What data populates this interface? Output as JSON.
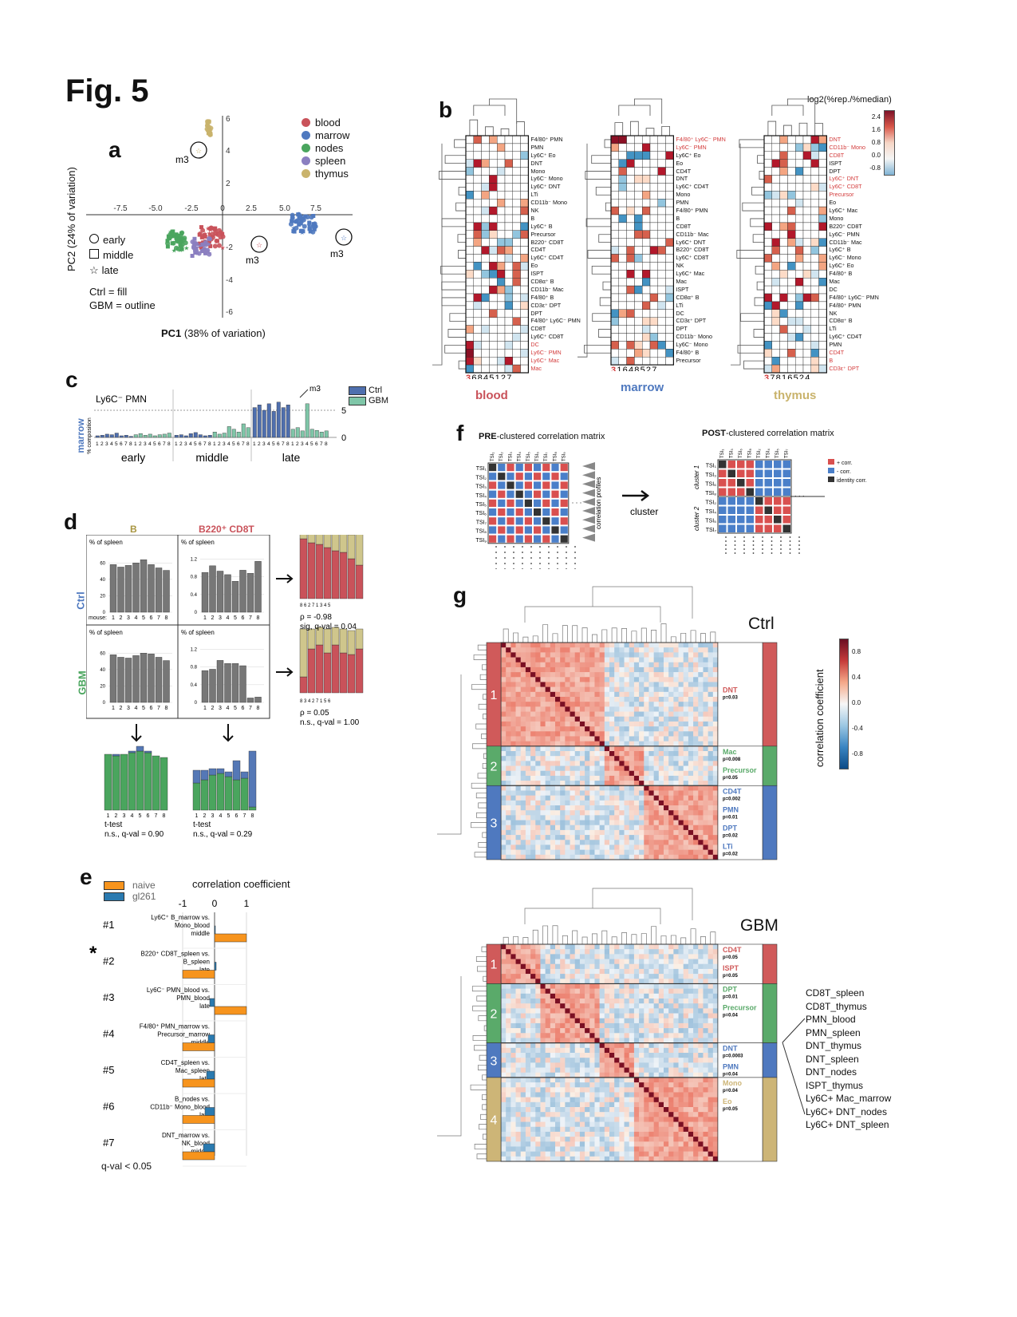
{
  "fig_title": "Fig. 5",
  "panels": {
    "a": {
      "label": "a",
      "xlabel_bold": "PC1",
      "xlabel_rest": " (38% of variation)",
      "ylabel": "PC2 (24% of variation)",
      "xticks": [
        "-7.5",
        "-5.0",
        "-2.5",
        "0",
        "2.5",
        "5.0",
        "7.5"
      ],
      "yticks": [
        "6",
        "4",
        "2",
        "-2",
        "-4",
        "-6"
      ],
      "tissues": [
        {
          "name": "blood",
          "color": "#c9525a"
        },
        {
          "name": "marrow",
          "color": "#4f79bf"
        },
        {
          "name": "nodes",
          "color": "#4aa55e"
        },
        {
          "name": "spleen",
          "color": "#8b7fc0"
        },
        {
          "name": "thymus",
          "color": "#c9b36c"
        }
      ],
      "timepoints": [
        "early",
        "middle",
        "late"
      ],
      "fill_note": "Ctrl = fill",
      "outline_note": "GBM = outline",
      "m3_label": "m3"
    },
    "b": {
      "label": "b",
      "scale_title": "log2(%rep./%median)",
      "scale_ticks": [
        "2.4",
        "1.6",
        "0.8",
        "0.0",
        "-0.8"
      ],
      "blocks": [
        {
          "tissue": "blood",
          "color": "#c9525a",
          "order": "3 6 8 4 5 1 2 7",
          "rows": [
            "F4/80⁺ PMN",
            "PMN",
            "Ly6C⁺ Eo",
            "DNT",
            "Mono",
            "Ly6C⁻ Mono",
            "Ly6C⁺ DNT",
            "LTi",
            "CD11b⁻ Mono",
            "NK",
            "B",
            "Ly6C⁺ B",
            "Precursor",
            "B220⁺ CD8T",
            "CD4T",
            "Ly6C⁺ CD4T",
            "Eo",
            "ISPT",
            "CD8α⁺ B",
            "CD11b⁻ Mac",
            "F4/80⁺ B",
            "CD3ε⁺ DPT",
            "DPT",
            "F4/80⁺ Ly6C⁻ PMN",
            "CD8T",
            "Ly6C⁺ CD8T",
            "DC",
            "Ly6C⁻ PMN",
            "Ly6C⁺ Mac",
            "Mac"
          ],
          "red_rows": [
            26,
            27,
            28,
            29
          ]
        },
        {
          "tissue": "marrow",
          "color": "#4f79bf",
          "order": "3 1 6 4 8 5 2 7",
          "rows": [
            "F4/80⁺ Ly6C⁻ PMN",
            "Ly6C⁻ PMN",
            "Ly6C⁺ Eo",
            "Eo",
            "CD4T",
            "DNT",
            "Ly6C⁺ CD4T",
            "Mono",
            "PMN",
            "F4/80⁺ PMN",
            "B",
            "CD8T",
            "CD11b⁻ Mac",
            "Ly6C⁺ DNT",
            "B220⁺ CD8T",
            "Ly6C⁺ CD8T",
            "NK",
            "Ly6C⁺ Mac",
            "Mac",
            "ISPT",
            "CD8α⁺ B",
            "LTi",
            "DC",
            "CD3ε⁺ DPT",
            "DPT",
            "CD11b⁻ Mono",
            "Ly6C⁻ Mono",
            "F4/80⁺ B",
            "Precursor"
          ],
          "red_rows": [
            0,
            1
          ]
        },
        {
          "tissue": "thymus",
          "color": "#c9b36c",
          "order": "3 7 8 1 6 5 2 4",
          "rows": [
            "DNT",
            "CD11b⁻ Mono",
            "CD8T",
            "ISPT",
            "DPT",
            "Ly6C⁺ DNT",
            "Ly6C⁺ CD8T",
            "Precursor",
            "Eo",
            "Ly6C⁺ Mac",
            "Mono",
            "B220⁺ CD8T",
            "Ly6C⁻ PMN",
            "CD11b⁻ Mac",
            "Ly6C⁺ B",
            "Ly6C⁻ Mono",
            "Ly6C⁺ Eo",
            "F4/80⁺ B",
            "Mac",
            "DC",
            "F4/80⁺ Ly6C⁻ PMN",
            "F4/80⁺ PMN",
            "NK",
            "CD8α⁺ B",
            "LTi",
            "Ly6C⁺ CD4T",
            "PMN",
            "CD4T",
            "B",
            "CD3ε⁺ DPT"
          ],
          "red_rows": [
            0,
            1,
            2,
            5,
            6,
            7,
            27,
            28,
            29
          ]
        }
      ]
    },
    "c": {
      "label": "c",
      "tissue_label": "marrow",
      "ylabel": "% composition",
      "title": "Ly6C⁻ PMN",
      "legend": [
        {
          "name": "Ctrl",
          "color": "#4f6fae"
        },
        {
          "name": "GBM",
          "color": "#7fc6a8"
        }
      ],
      "yticks": [
        "5",
        "0"
      ],
      "groups": [
        "early",
        "middle",
        "late"
      ],
      "m3_label": "m3",
      "mouse_labels": [
        "1",
        "2",
        "3",
        "4",
        "5",
        "6",
        "7",
        "8"
      ]
    },
    "d": {
      "label": "d",
      "col_b": "B",
      "col_cd8": "B220⁺ CD8T",
      "row_ctrl": "Ctrl",
      "row_gbm": "GBM",
      "pct_label": "% of spleen",
      "mouse_label": "mouse:",
      "ctrl_stat1": "ρ = -0.98",
      "ctrl_stat2": "sig, q-val = 0.04",
      "ctrl_order": "8 6 2 7 1 3 4 5",
      "gbm_stat1": "ρ = 0.05",
      "gbm_stat2": "n.s., q-val = 1.00",
      "gbm_order": "8 3 4 2 7 1 5 6",
      "ttest_label": "t-test",
      "ttest_b": "n.s., q-val = 0.90",
      "ttest_cd8": "n.s., q-val = 0.29",
      "mice": [
        "1",
        "2",
        "3",
        "4",
        "5",
        "6",
        "7",
        "8"
      ]
    },
    "e": {
      "label": "e",
      "legend": [
        {
          "name": "naive",
          "color": "#f7941d"
        },
        {
          "name": "gl261",
          "color": "#2a7ab0"
        }
      ],
      "axis_title": "correlation coefficient",
      "ticks": [
        "-1",
        "0",
        "1"
      ],
      "rows": [
        {
          "id": "#1",
          "l1": "Ly6C⁺ B_marrow vs.",
          "l2": "Mono_blood",
          "l3": "middle",
          "naive": 1.0,
          "gl261": 0.0
        },
        {
          "id": "#2",
          "l1": "B220⁺ CD8T_spleen vs.",
          "l2": "B_spleen",
          "l3": "late",
          "naive": -1.0,
          "gl261": 0.05
        },
        {
          "id": "#3",
          "l1": "Ly6C⁻ PMN_blood vs.",
          "l2": "PMN_blood",
          "l3": "late",
          "naive": 1.0,
          "gl261": -0.15
        },
        {
          "id": "#4",
          "l1": "F4/80⁺ PMN_marrow vs.",
          "l2": "Precursor_marrow",
          "l3": "middle",
          "naive": -1.0,
          "gl261": -0.2
        },
        {
          "id": "#5",
          "l1": "CD4T_spleen vs.",
          "l2": "Mac_spleen",
          "l3": "late",
          "naive": -1.0,
          "gl261": -0.25
        },
        {
          "id": "#6",
          "l1": "B_nodes vs.",
          "l2": "CD11b⁻ Mono_blood",
          "l3": "late",
          "naive": -1.0,
          "gl261": -0.3
        },
        {
          "id": "#7",
          "l1": "DNT_marrow vs.",
          "l2": "NK_blood",
          "l3": "middle",
          "naive": -1.0,
          "gl261": -0.35
        }
      ],
      "star": "*",
      "footnote": "q-val < 0.05"
    },
    "f": {
      "label": "f",
      "pre_bold": "PRE",
      "pre_rest": "-clustered correlation matrix",
      "post_bold": "POST",
      "post_rest": "-clustered correlation matrix",
      "arrow_label": "cluster",
      "profiles_label": "correlation profiles",
      "cluster1": "cluster 1",
      "cluster2": "cluster 2",
      "legend": [
        {
          "name": "+ corr.",
          "color": "#d9504f"
        },
        {
          "name": "- corr.",
          "color": "#4a7fc9"
        },
        {
          "name": "identity corr.",
          "color": "#333333"
        }
      ]
    },
    "g": {
      "label": "g",
      "ctrl_title": "Ctrl",
      "gbm_title": "GBM",
      "colorbar_title": "correlation coefficient",
      "colorbar_ticks": [
        "0.8",
        "0.4",
        "0.0",
        "-0.4",
        "-0.8"
      ],
      "ctrl_clusters": [
        {
          "n": "1",
          "color": "#d05a5a",
          "labels": [
            {
              "t": "DNT",
              "p": "p=0.03"
            }
          ]
        },
        {
          "n": "2",
          "color": "#5aaa6a",
          "labels": [
            {
              "t": "Mac",
              "p": "p=0.008"
            },
            {
              "t": "Precursor",
              "p": "p=0.05"
            }
          ]
        },
        {
          "n": "3",
          "color": "#4f79bf",
          "labels": [
            {
              "t": "CD4T",
              "p": "p=0.002"
            },
            {
              "t": "PMN",
              "p": "p=0.01"
            },
            {
              "t": "DPT",
              "p": "p=0.02"
            },
            {
              "t": "LTi",
              "p": "p=0.02"
            }
          ]
        }
      ],
      "gbm_clusters": [
        {
          "n": "1",
          "color": "#d05a5a",
          "labels": [
            {
              "t": "CD4T",
              "p": "p=0.05"
            },
            {
              "t": "ISPT",
              "p": "p=0.05"
            }
          ]
        },
        {
          "n": "2",
          "color": "#5aaa6a",
          "labels": [
            {
              "t": "DPT",
              "p": "p=0.01"
            },
            {
              "t": "Precursor",
              "p": "p=0.04"
            }
          ]
        },
        {
          "n": "3",
          "color": "#4f79bf",
          "labels": [
            {
              "t": "DNT",
              "p": "p=0.0003"
            },
            {
              "t": "PMN",
              "p": "p=0.04"
            }
          ]
        },
        {
          "n": "4",
          "color": "#cdb577",
          "labels": [
            {
              "t": "Mono",
              "p": "p=0.04"
            },
            {
              "t": "Eo",
              "p": "p=0.05"
            }
          ]
        }
      ],
      "gbm_cluster3_members": [
        "CD8T_spleen",
        "CD8T_thymus",
        "PMN_blood",
        "PMN_spleen",
        "DNT_thymus",
        "DNT_spleen",
        "DNT_nodes",
        "ISPT_thymus",
        "Ly6C+ Mac_marrow",
        "Ly6C+ DNT_nodes",
        "Ly6C+ DNT_spleen"
      ]
    }
  }
}
